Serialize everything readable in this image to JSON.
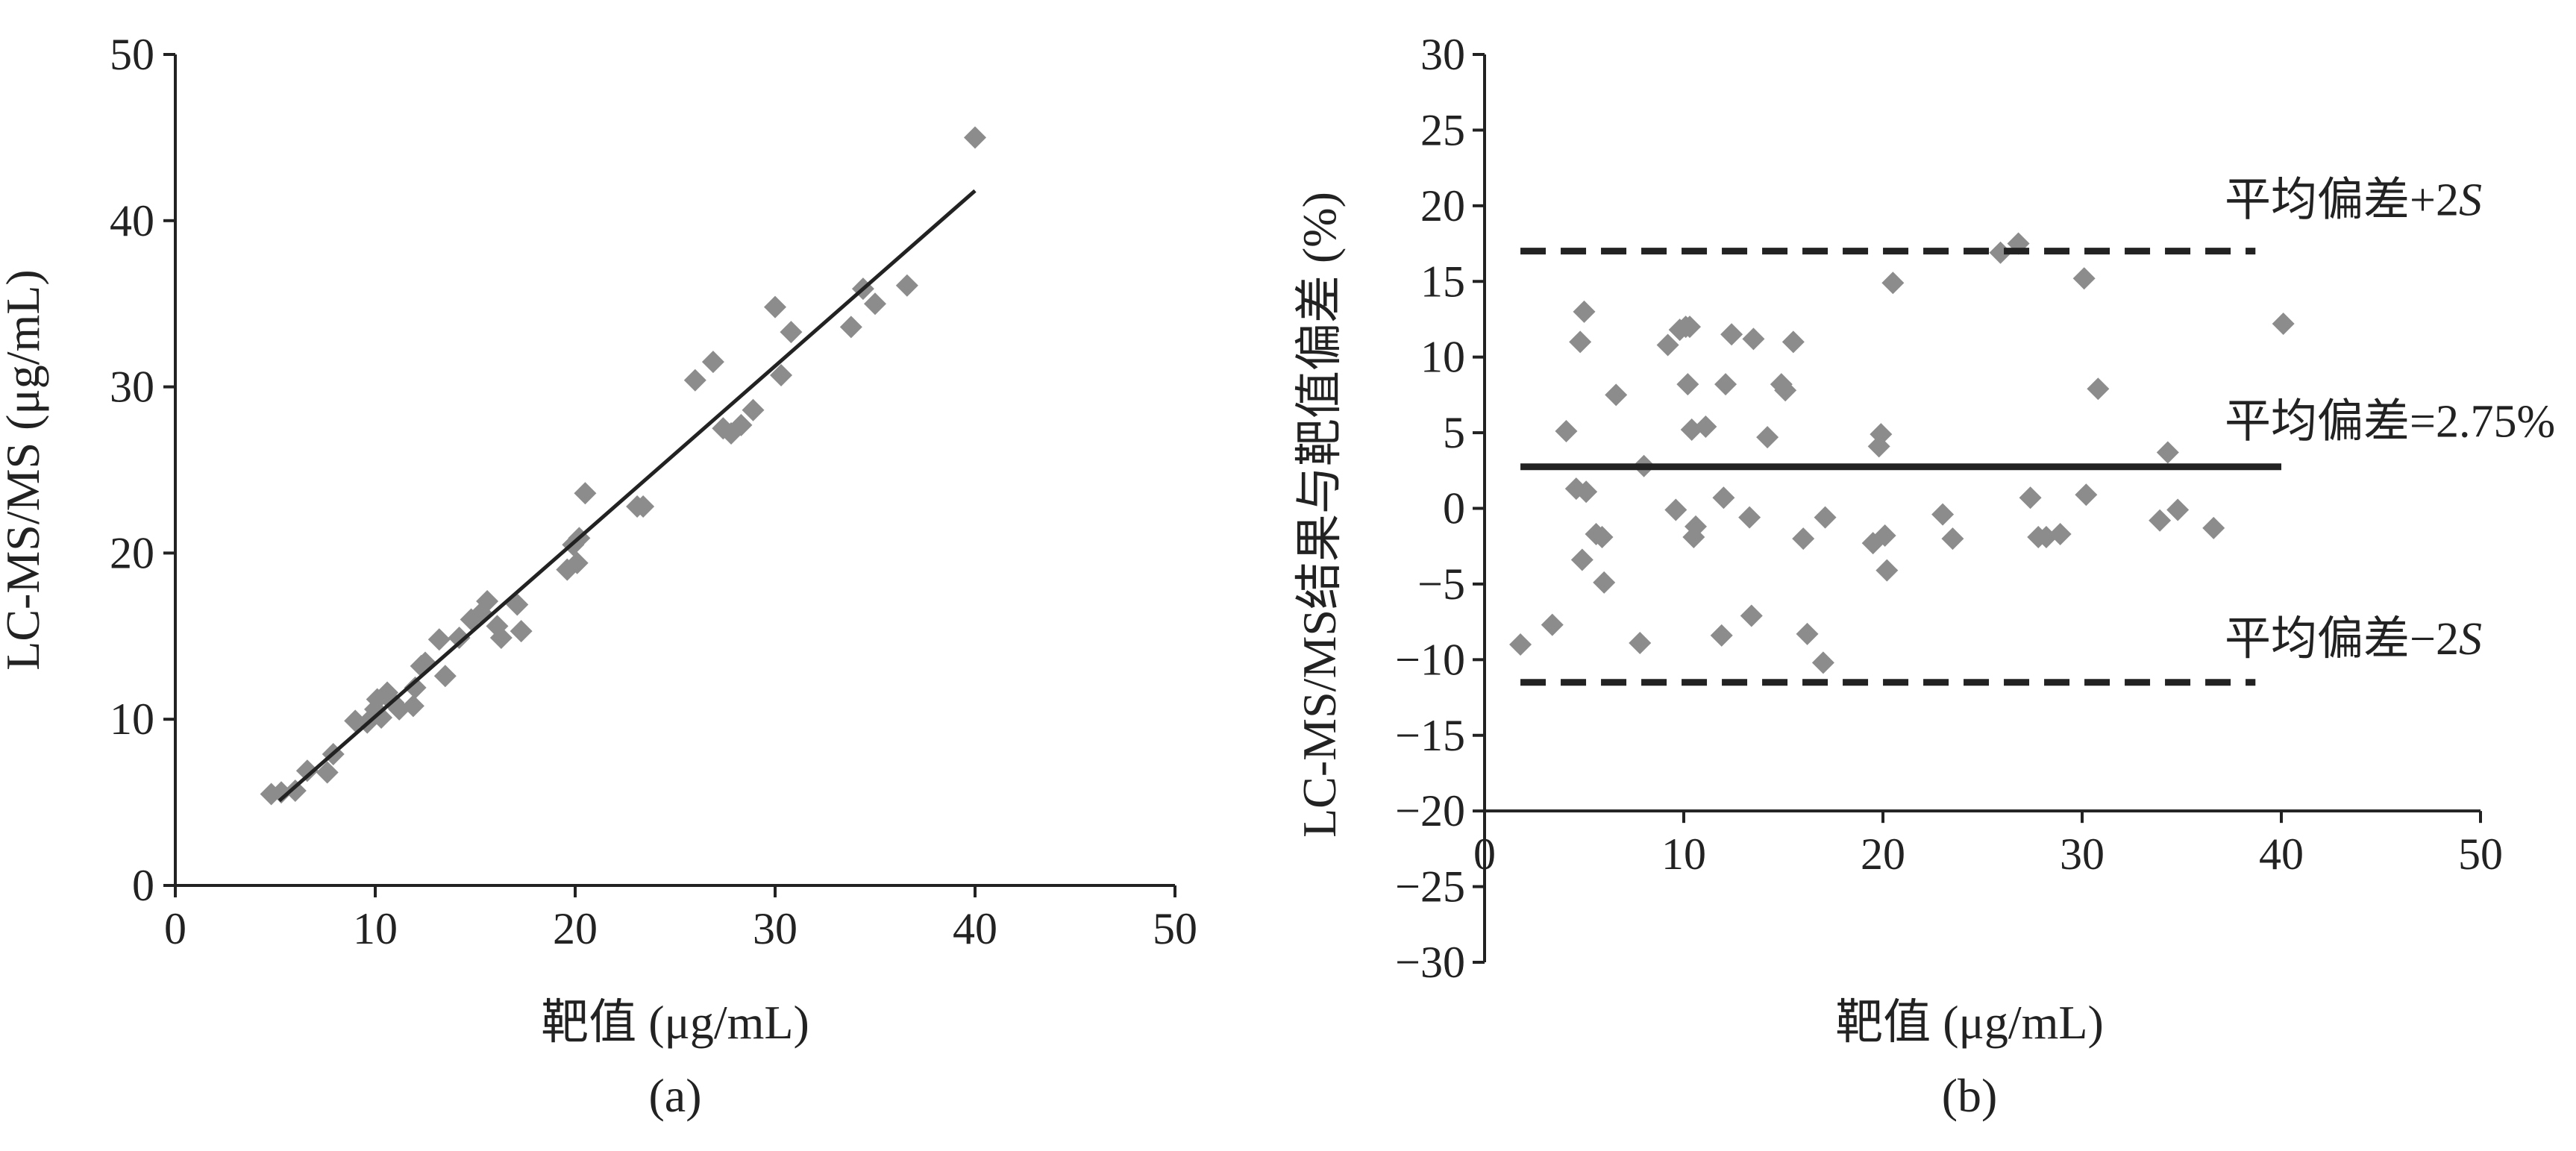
{
  "colors": {
    "axis": "#222222",
    "marker": "#8c8c8c",
    "line": "#222222"
  },
  "chart_data": [
    {
      "type": "scatter",
      "panel_label": "(a)",
      "xlabel": "靶值 (μg/mL)",
      "ylabel": "LC-MS/MS (μg/mL)",
      "xlim": [
        0,
        50
      ],
      "ylim": [
        0,
        50
      ],
      "x_ticks": [
        "0",
        "10",
        "20",
        "30",
        "40",
        "50"
      ],
      "y_ticks": [
        "0",
        "10",
        "20",
        "30",
        "40",
        "50"
      ],
      "grid": false,
      "marker": "diamond",
      "points": [
        [
          4.8,
          5.5
        ],
        [
          5.3,
          5.6
        ],
        [
          6.0,
          5.7
        ],
        [
          6.6,
          6.9
        ],
        [
          7.6,
          6.8
        ],
        [
          7.9,
          7.9
        ],
        [
          9.0,
          9.9
        ],
        [
          9.6,
          9.8
        ],
        [
          10.0,
          10.6
        ],
        [
          10.1,
          11.2
        ],
        [
          10.3,
          10.1
        ],
        [
          10.6,
          11.6
        ],
        [
          10.9,
          11.0
        ],
        [
          11.2,
          10.6
        ],
        [
          11.9,
          10.8
        ],
        [
          12.0,
          11.9
        ],
        [
          12.3,
          13.2
        ],
        [
          12.5,
          13.4
        ],
        [
          13.2,
          14.8
        ],
        [
          13.5,
          12.6
        ],
        [
          14.2,
          14.9
        ],
        [
          14.8,
          16.0
        ],
        [
          15.3,
          16.4
        ],
        [
          15.6,
          17.1
        ],
        [
          16.1,
          15.6
        ],
        [
          16.3,
          14.9
        ],
        [
          17.1,
          16.9
        ],
        [
          17.3,
          15.3
        ],
        [
          19.6,
          19.0
        ],
        [
          19.9,
          20.5
        ],
        [
          20.1,
          19.4
        ],
        [
          20.2,
          20.9
        ],
        [
          20.5,
          23.6
        ],
        [
          23.1,
          22.8
        ],
        [
          23.4,
          22.8
        ],
        [
          26.0,
          30.4
        ],
        [
          26.9,
          31.5
        ],
        [
          27.4,
          27.5
        ],
        [
          27.8,
          27.2
        ],
        [
          28.3,
          27.7
        ],
        [
          28.9,
          28.6
        ],
        [
          30.0,
          34.8
        ],
        [
          30.3,
          30.7
        ],
        [
          30.8,
          33.3
        ],
        [
          33.8,
          33.6
        ],
        [
          34.4,
          35.9
        ],
        [
          35.0,
          35.0
        ],
        [
          36.6,
          36.1
        ],
        [
          40.0,
          45.0
        ]
      ],
      "fit_line": {
        "x": [
          5.2,
          40.0
        ],
        "y": [
          5.1,
          41.8
        ]
      }
    },
    {
      "type": "scatter",
      "panel_label": "(b)",
      "xlabel": "靶值 (μg/mL)",
      "ylabel": "LC-MS/MS结果与靶值偏差 (%)",
      "xlim": [
        0,
        50
      ],
      "ylim": [
        -30,
        30
      ],
      "x_axis_at_y": -20,
      "x_ticks": [
        "0",
        "10",
        "20",
        "30",
        "40",
        "50"
      ],
      "y_ticks": [
        "−30",
        "−25",
        "−20",
        "−15",
        "−10",
        "−5",
        "0",
        "5",
        "10",
        "15",
        "20",
        "25",
        "30"
      ],
      "grid": false,
      "marker": "diamond",
      "points": [
        [
          1.8,
          -9.0
        ],
        [
          3.4,
          -7.7
        ],
        [
          4.1,
          5.1
        ],
        [
          4.6,
          1.3
        ],
        [
          4.8,
          11.0
        ],
        [
          4.9,
          -3.4
        ],
        [
          5.0,
          13.0
        ],
        [
          5.1,
          1.1
        ],
        [
          5.6,
          -1.7
        ],
        [
          5.9,
          -1.9
        ],
        [
          6.0,
          -4.9
        ],
        [
          6.6,
          7.5
        ],
        [
          7.8,
          -8.9
        ],
        [
          8.0,
          2.8
        ],
        [
          9.2,
          10.8
        ],
        [
          9.6,
          -0.1
        ],
        [
          9.8,
          11.8
        ],
        [
          10.1,
          12.0
        ],
        [
          10.2,
          8.2
        ],
        [
          10.3,
          12.0
        ],
        [
          10.4,
          5.2
        ],
        [
          10.5,
          -1.9
        ],
        [
          10.6,
          -1.2
        ],
        [
          11.1,
          5.4
        ],
        [
          11.9,
          -8.4
        ],
        [
          12.0,
          0.7
        ],
        [
          12.1,
          8.2
        ],
        [
          12.4,
          11.5
        ],
        [
          13.3,
          -0.6
        ],
        [
          13.4,
          -7.1
        ],
        [
          13.5,
          11.2
        ],
        [
          14.2,
          4.7
        ],
        [
          14.9,
          8.2
        ],
        [
          15.1,
          7.8
        ],
        [
          15.5,
          11.0
        ],
        [
          16.0,
          -2.0
        ],
        [
          16.2,
          -8.3
        ],
        [
          17.0,
          -10.2
        ],
        [
          17.1,
          -0.6
        ],
        [
          19.5,
          -2.3
        ],
        [
          19.8,
          4.1
        ],
        [
          19.9,
          4.9
        ],
        [
          20.1,
          -1.8
        ],
        [
          20.2,
          -4.1
        ],
        [
          20.5,
          14.9
        ],
        [
          23.0,
          -0.4
        ],
        [
          23.5,
          -2.0
        ],
        [
          25.9,
          16.9
        ],
        [
          26.8,
          17.5
        ],
        [
          27.4,
          0.7
        ],
        [
          27.8,
          -1.9
        ],
        [
          28.2,
          -1.9
        ],
        [
          28.9,
          -1.7
        ],
        [
          30.1,
          15.2
        ],
        [
          30.2,
          0.9
        ],
        [
          30.8,
          7.9
        ],
        [
          33.9,
          -0.8
        ],
        [
          34.3,
          3.7
        ],
        [
          34.8,
          -0.1
        ],
        [
          36.6,
          -1.3
        ],
        [
          40.1,
          12.2
        ]
      ],
      "mean_line": {
        "value": 2.75,
        "label": "平均偏差=2.75%",
        "x": [
          1.8,
          40.0
        ]
      },
      "upper_line": {
        "value": 17.0,
        "label": "平均偏差+2",
        "label_italic": "S",
        "x": [
          1.8,
          38.7
        ]
      },
      "lower_line": {
        "value": -11.5,
        "label": "平均偏差−2",
        "label_italic": "S",
        "x": [
          1.8,
          38.7
        ]
      }
    }
  ]
}
